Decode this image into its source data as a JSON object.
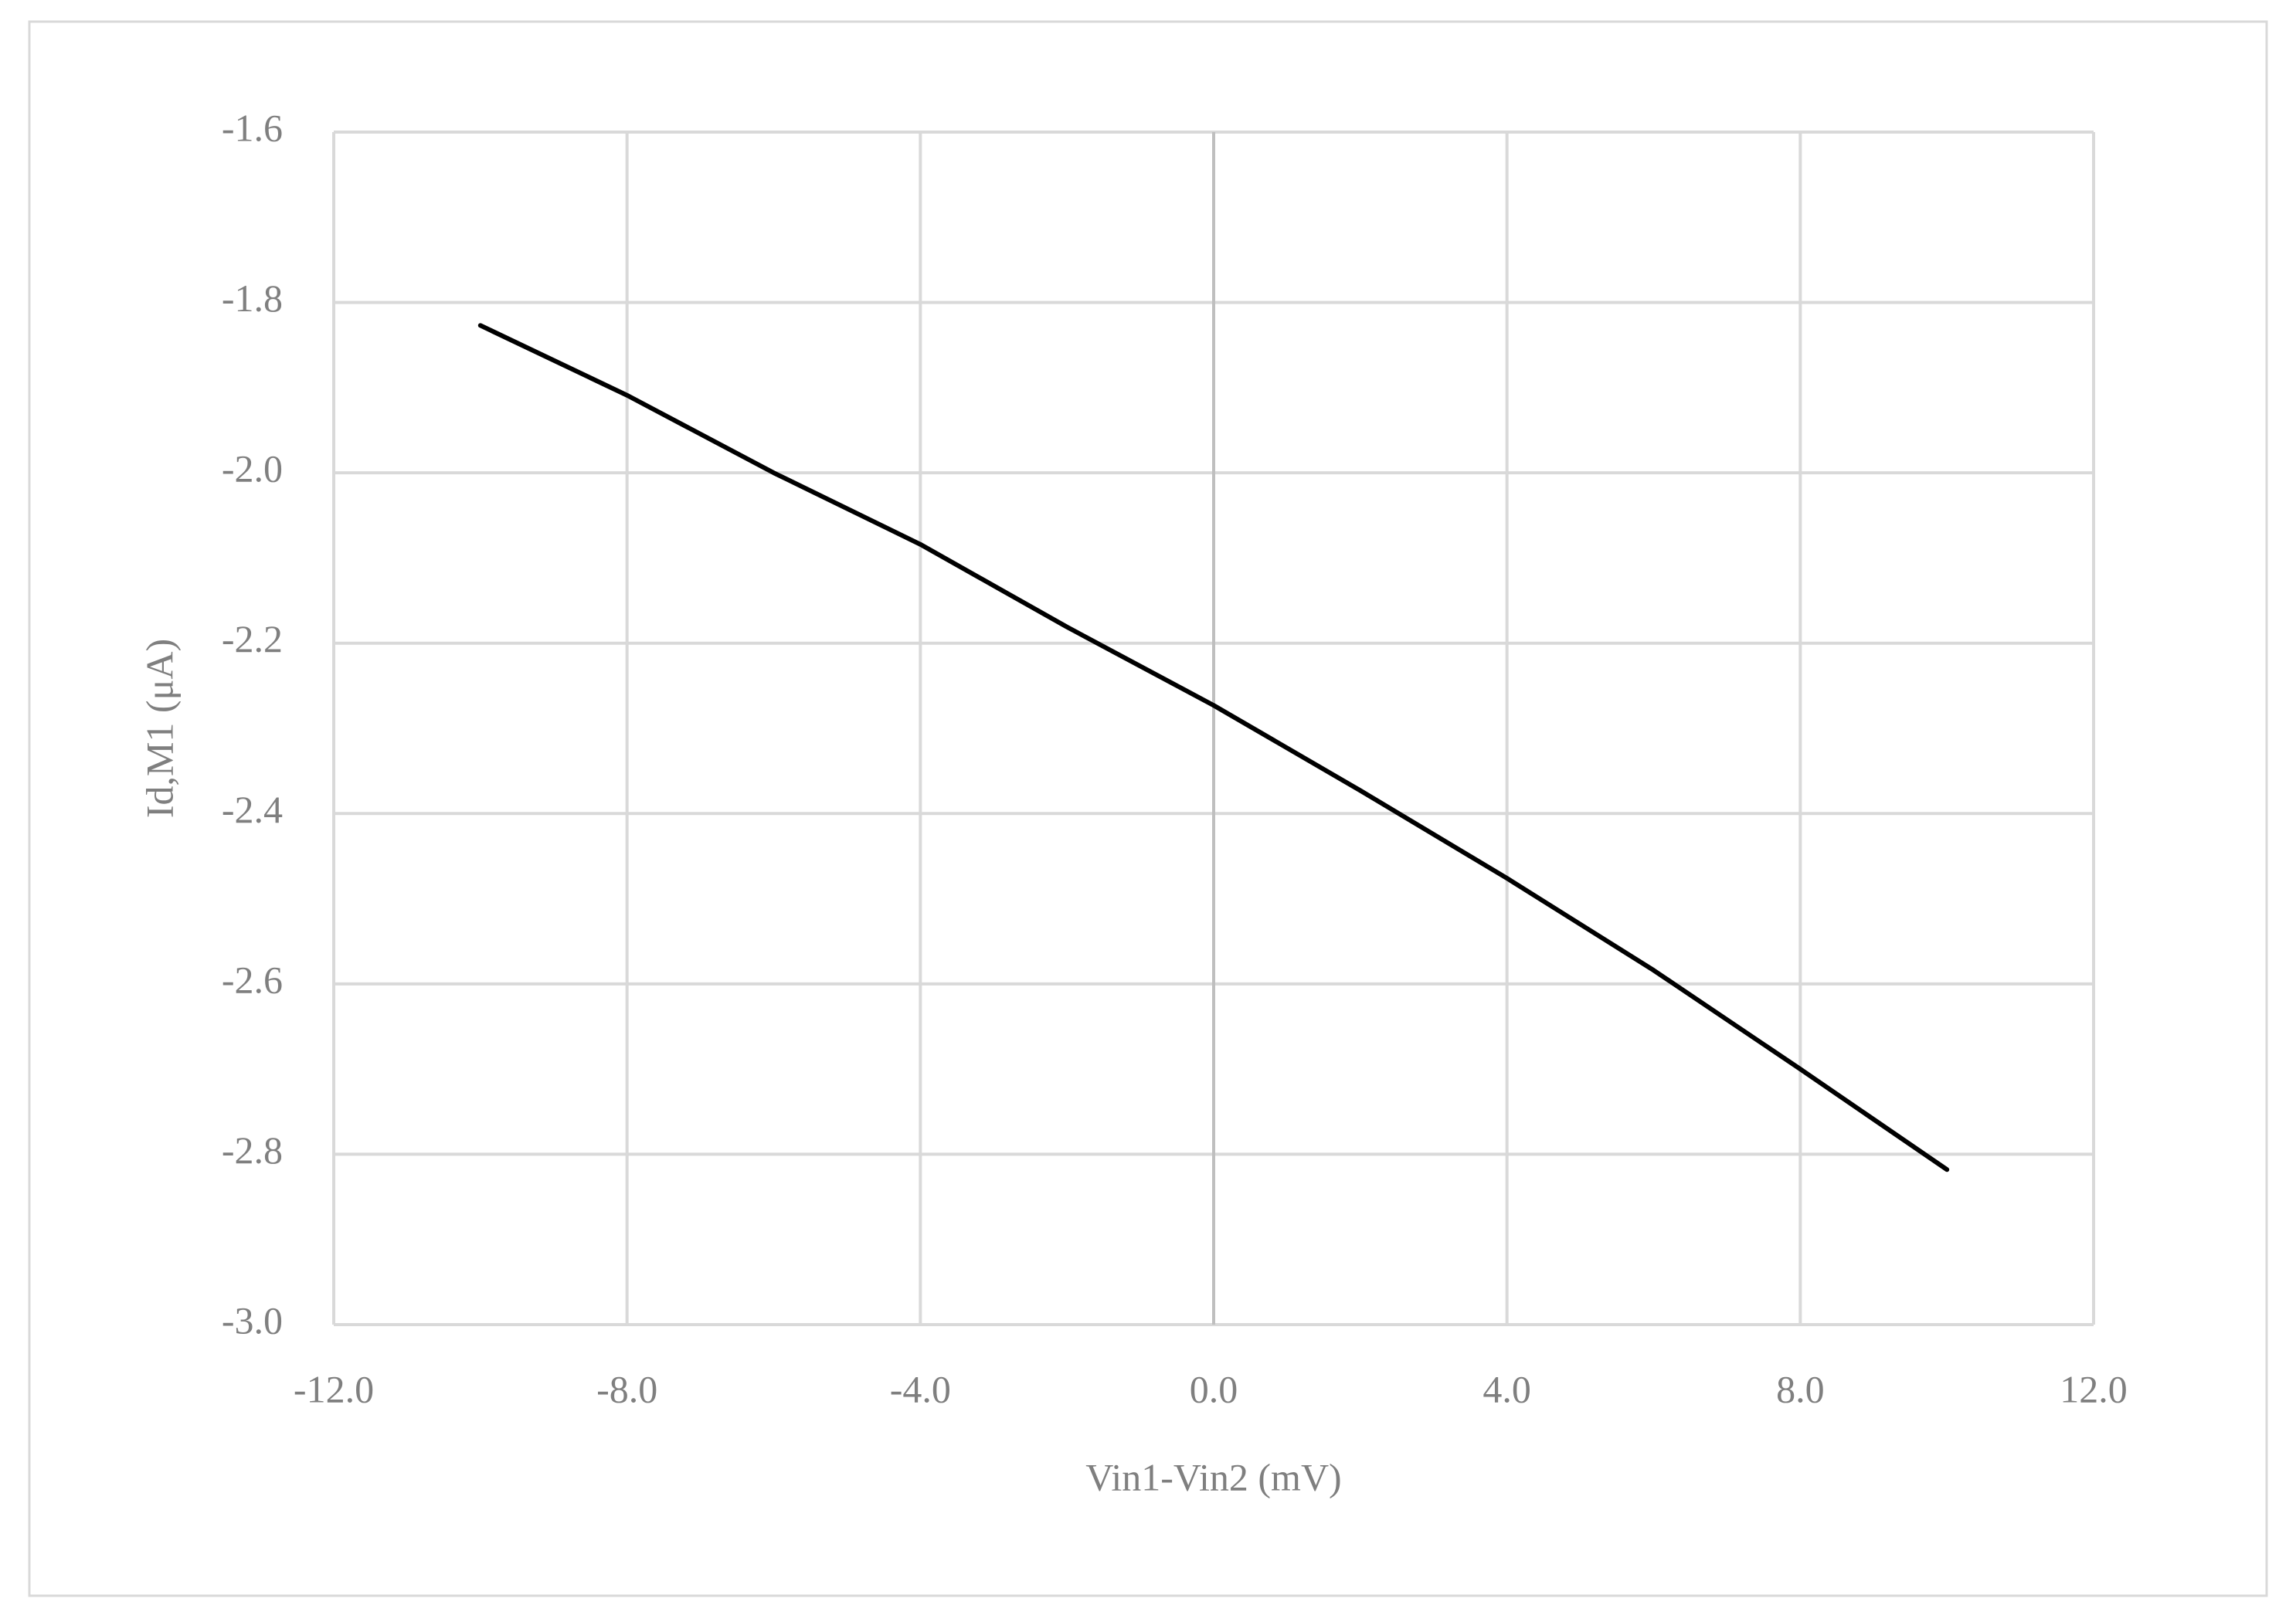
{
  "chart_data": {
    "type": "line",
    "x_label": "Vin1-Vin2 (mV)",
    "y_label": "Id,M1 (μA)",
    "x": [
      -10,
      -8,
      -6,
      -4,
      -2,
      0,
      2,
      4,
      6,
      8,
      10
    ],
    "series": [
      {
        "name": "Id,M1",
        "color": "#000000",
        "values": [
          -1.827,
          -1.909,
          -2.0,
          -2.084,
          -2.181,
          -2.273,
          -2.373,
          -2.476,
          -2.584,
          -2.7,
          -2.818
        ]
      }
    ],
    "xlim": [
      -12,
      12
    ],
    "xticks": [
      {
        "value": -12,
        "label": "-12.0"
      },
      {
        "value": -8,
        "label": "-8.0"
      },
      {
        "value": -4,
        "label": "-4.0"
      },
      {
        "value": 0,
        "label": "0.0"
      },
      {
        "value": 4,
        "label": "4.0"
      },
      {
        "value": 8,
        "label": "8.0"
      },
      {
        "value": 12,
        "label": "12.0"
      }
    ],
    "ylim": [
      -3,
      -1.6
    ],
    "yticks": [
      {
        "value": -3,
        "label": "-3.0"
      },
      -2.8,
      -2.6,
      -2.4,
      -2.2,
      {
        "value": -2,
        "label": "-2.0"
      },
      -1.8,
      -1.6
    ],
    "grid": true
  }
}
